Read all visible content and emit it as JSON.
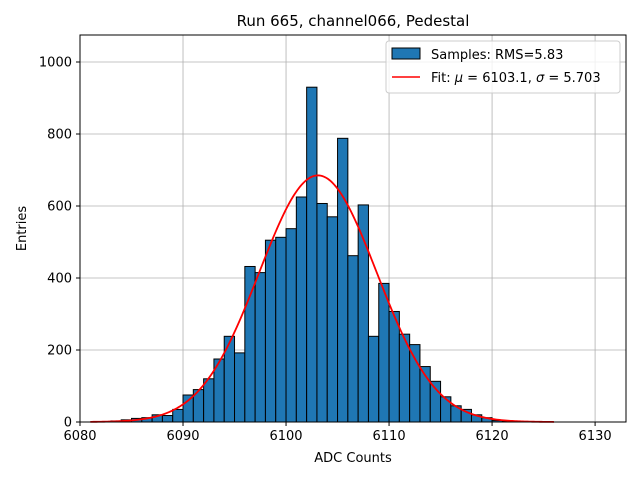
{
  "chart_data": {
    "type": "bar",
    "title": "Run 665, channel066, Pedestal",
    "xlabel": "ADC Counts",
    "ylabel": "Entries",
    "xlim": [
      6080,
      6133
    ],
    "ylim": [
      0,
      1075
    ],
    "xticks": [
      6080,
      6090,
      6100,
      6110,
      6120,
      6130
    ],
    "yticks": [
      0,
      200,
      400,
      600,
      800,
      1000
    ],
    "grid": true,
    "legend_position": "top-right",
    "histogram": {
      "name": "Samples: RMS=5.83",
      "bin_edges": [
        6081,
        6082,
        6083,
        6084,
        6085,
        6086,
        6087,
        6088,
        6089,
        6090,
        6091,
        6092,
        6093,
        6094,
        6095,
        6096,
        6097,
        6098,
        6099,
        6100,
        6101,
        6102,
        6103,
        6104,
        6105,
        6106,
        6107,
        6108,
        6109,
        6110,
        6111,
        6112,
        6113,
        6114,
        6115,
        6116,
        6117,
        6118,
        6119,
        6120,
        6121,
        6122,
        6123,
        6124,
        6125,
        6126
      ],
      "counts": [
        0,
        1,
        3,
        6,
        10,
        12,
        20,
        18,
        35,
        75,
        90,
        120,
        175,
        238,
        192,
        432,
        415,
        505,
        513,
        537,
        625,
        930,
        607,
        570,
        788,
        462,
        603,
        238,
        385,
        307,
        244,
        215,
        154,
        113,
        70,
        45,
        35,
        20,
        12,
        4,
        2,
        1,
        0,
        0,
        0
      ],
      "color": "#1f77b4",
      "edgecolor": "#000000"
    },
    "fit": {
      "name": "Fit: μ = 6103.1, σ = 5.703",
      "label_prefix": "Fit: ",
      "label_mu": "μ",
      "label_mu_value": " = 6103.1, ",
      "label_sigma": "σ",
      "label_sigma_value": " = 5.703",
      "mu": 6103.1,
      "sigma": 5.703,
      "amplitude": 685,
      "x_range": [
        6081,
        6126
      ],
      "color": "#ff0000"
    }
  }
}
